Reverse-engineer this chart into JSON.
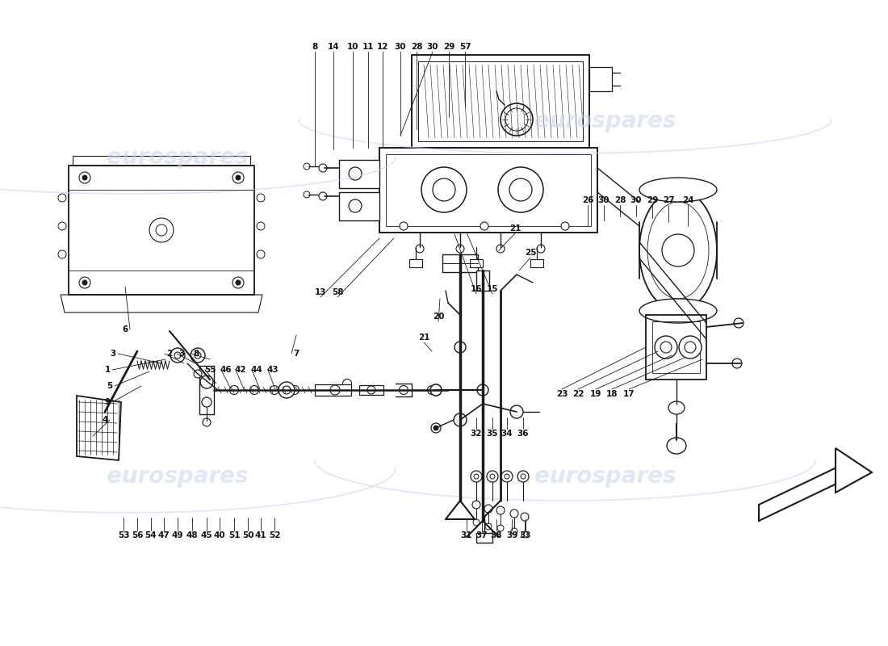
{
  "bg_color": "#ffffff",
  "line_color": "#1a1a1a",
  "wm_color": "#c8d4e8",
  "wm_alpha": 0.55,
  "top_labels": [
    [
      "8",
      390,
      58
    ],
    [
      "14",
      413,
      58
    ],
    [
      "10",
      437,
      58
    ],
    [
      "11",
      456,
      58
    ],
    [
      "12",
      474,
      58
    ],
    [
      "30",
      496,
      58
    ],
    [
      "28",
      516,
      58
    ],
    [
      "30",
      536,
      58
    ],
    [
      "29",
      556,
      58
    ],
    [
      "57",
      576,
      58
    ]
  ],
  "right_row_labels": [
    [
      "26",
      728,
      248
    ],
    [
      "30",
      748,
      248
    ],
    [
      "28",
      768,
      248
    ],
    [
      "30",
      788,
      248
    ],
    [
      "29",
      808,
      248
    ],
    [
      "27",
      828,
      248
    ],
    [
      "24",
      852,
      248
    ]
  ],
  "left_col_labels": [
    [
      "6",
      155,
      408
    ],
    [
      "3",
      140,
      438
    ],
    [
      "2",
      210,
      438
    ],
    [
      "3",
      225,
      438
    ],
    [
      "8",
      243,
      438
    ],
    [
      "7",
      367,
      438
    ],
    [
      "1",
      133,
      458
    ],
    [
      "5",
      136,
      478
    ],
    [
      "9",
      133,
      498
    ],
    [
      "4",
      130,
      520
    ],
    [
      "55",
      260,
      458
    ],
    [
      "46",
      280,
      458
    ],
    [
      "42",
      298,
      458
    ],
    [
      "44",
      318,
      458
    ],
    [
      "43",
      338,
      458
    ]
  ],
  "mid_labels": [
    [
      "13",
      397,
      362
    ],
    [
      "58",
      418,
      362
    ],
    [
      "16",
      590,
      358
    ],
    [
      "15",
      610,
      358
    ],
    [
      "20",
      543,
      392
    ],
    [
      "21",
      525,
      418
    ],
    [
      "21",
      638,
      283
    ],
    [
      "25",
      657,
      313
    ]
  ],
  "bot_left_labels": [
    [
      "53",
      153,
      663
    ],
    [
      "56",
      170,
      663
    ],
    [
      "54",
      187,
      663
    ],
    [
      "47",
      203,
      663
    ],
    [
      "49",
      220,
      663
    ],
    [
      "48",
      238,
      663
    ],
    [
      "45",
      256,
      663
    ],
    [
      "40",
      272,
      663
    ],
    [
      "51",
      290,
      663
    ],
    [
      "50",
      307,
      663
    ],
    [
      "41",
      323,
      663
    ],
    [
      "52",
      340,
      663
    ]
  ],
  "bot_right_labels": [
    [
      "32",
      590,
      537
    ],
    [
      "35",
      610,
      537
    ],
    [
      "34",
      628,
      537
    ],
    [
      "36",
      648,
      537
    ],
    [
      "31",
      578,
      663
    ],
    [
      "37",
      597,
      663
    ],
    [
      "38",
      615,
      663
    ],
    [
      "39",
      634,
      663
    ],
    [
      "33",
      651,
      663
    ]
  ],
  "far_right_labels": [
    [
      "23",
      696,
      488
    ],
    [
      "22",
      716,
      488
    ],
    [
      "19",
      738,
      488
    ],
    [
      "18",
      758,
      488
    ],
    [
      "17",
      779,
      488
    ]
  ]
}
